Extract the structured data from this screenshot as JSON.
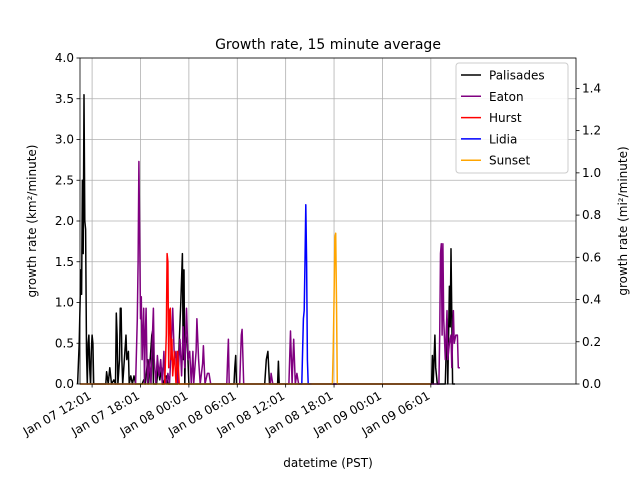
{
  "chart_data": {
    "type": "line",
    "title": "Growth rate, 15 minute average",
    "xlabel": "datetime (PST)",
    "ylabel_left": "growth rate (km²/minute)",
    "ylabel_right": "growth rate (mi²/minute)",
    "ylim_left": [
      0,
      4.0
    ],
    "ylim_right": [
      0,
      1.544
    ],
    "yticks_left": [
      "0.0",
      "0.5",
      "1.0",
      "1.5",
      "2.0",
      "2.5",
      "3.0",
      "3.5",
      "4.0"
    ],
    "yticks_right": [
      "0.0",
      "0.2",
      "0.4",
      "0.6",
      "0.8",
      "1.0",
      "1.2",
      "1.4"
    ],
    "xlim_hours": [
      -1.5,
      60.0
    ],
    "xticks": [
      {
        "h": 0,
        "label": "Jan 07 12:01"
      },
      {
        "h": 6,
        "label": "Jan 07 18:01"
      },
      {
        "h": 12,
        "label": "Jan 08 00:01"
      },
      {
        "h": 18,
        "label": "Jan 08 06:01"
      },
      {
        "h": 24,
        "label": "Jan 08 12:01"
      },
      {
        "h": 30,
        "label": "Jan 08 18:01"
      },
      {
        "h": 36,
        "label": "Jan 09 00:01"
      },
      {
        "h": 42,
        "label": "Jan 09 06:01"
      }
    ],
    "grid": true,
    "legend_position": "top-right",
    "series": [
      {
        "name": "Palisades",
        "color": "#000000",
        "points": [
          [
            -1.8,
            0
          ],
          [
            -1.6,
            0.5
          ],
          [
            -1.4,
            1.4
          ],
          [
            -1.3,
            1.1
          ],
          [
            -1.2,
            2.5
          ],
          [
            -1.1,
            1.6
          ],
          [
            -1.0,
            3.55
          ],
          [
            -0.9,
            2.0
          ],
          [
            -0.8,
            1.9
          ],
          [
            -0.7,
            0.4
          ],
          [
            -0.6,
            0.0
          ],
          [
            -0.5,
            0.5
          ],
          [
            -0.4,
            0.6
          ],
          [
            -0.3,
            0.2
          ],
          [
            -0.2,
            0.0
          ],
          [
            -0.1,
            0.4
          ],
          [
            0.0,
            0.6
          ],
          [
            0.1,
            0.5
          ],
          [
            0.2,
            0.0
          ],
          [
            1.7,
            0.0
          ],
          [
            1.8,
            0.15
          ],
          [
            2.0,
            0.0
          ],
          [
            2.2,
            0.2
          ],
          [
            2.4,
            0.0
          ],
          [
            2.7,
            0.05
          ],
          [
            2.9,
            0.0
          ],
          [
            3.0,
            0.87
          ],
          [
            3.1,
            0.6
          ],
          [
            3.2,
            0.0
          ],
          [
            3.4,
            0.3
          ],
          [
            3.5,
            0.93
          ],
          [
            3.6,
            0.93
          ],
          [
            3.7,
            0.3
          ],
          [
            3.8,
            0.0
          ],
          [
            4.2,
            0.6
          ],
          [
            4.3,
            0.3
          ],
          [
            4.5,
            0.4
          ],
          [
            4.6,
            0.0
          ],
          [
            4.8,
            0.1
          ],
          [
            5.0,
            0.0
          ],
          [
            5.2,
            0.1
          ],
          [
            5.4,
            0.0
          ],
          [
            6.2,
            0.0
          ],
          [
            6.4,
            0.05
          ],
          [
            6.6,
            0.0
          ],
          [
            6.9,
            0.3
          ],
          [
            7.0,
            0.0
          ],
          [
            7.4,
            0.6
          ],
          [
            7.5,
            0.65
          ],
          [
            7.6,
            0.0
          ],
          [
            8.0,
            0.0
          ],
          [
            8.2,
            0.2
          ],
          [
            8.4,
            0.05
          ],
          [
            8.6,
            0.2
          ],
          [
            8.8,
            0.0
          ],
          [
            9.2,
            0.1
          ],
          [
            9.4,
            0.0
          ],
          [
            10.6,
            0.0
          ],
          [
            10.8,
            0.5
          ],
          [
            11.0,
            1.0
          ],
          [
            11.2,
            1.6
          ],
          [
            11.3,
            0.3
          ],
          [
            11.4,
            1.4
          ],
          [
            11.5,
            0.0
          ],
          [
            11.6,
            0.6
          ],
          [
            11.8,
            0.5
          ],
          [
            12.0,
            0.0
          ],
          [
            12.4,
            0.0
          ],
          [
            17.6,
            0.0
          ],
          [
            17.7,
            0.2
          ],
          [
            17.8,
            0.35
          ],
          [
            17.9,
            0.0
          ],
          [
            21.4,
            0.0
          ],
          [
            21.6,
            0.3
          ],
          [
            21.8,
            0.4
          ],
          [
            22.0,
            0.0
          ],
          [
            23.0,
            0.0
          ],
          [
            23.1,
            0.28
          ],
          [
            23.2,
            0.0
          ],
          [
            42.1,
            0.0
          ],
          [
            42.2,
            0.35
          ],
          [
            42.3,
            0.0
          ],
          [
            42.5,
            0.6
          ],
          [
            42.6,
            0.2
          ],
          [
            42.8,
            0.0
          ],
          [
            43.8,
            0.0
          ],
          [
            44.0,
            0.8
          ],
          [
            44.1,
            0.0
          ],
          [
            44.3,
            1.2
          ],
          [
            44.4,
            0.7
          ],
          [
            44.5,
            1.66
          ],
          [
            44.7,
            0.0
          ],
          [
            45.0,
            0.0
          ]
        ]
      },
      {
        "name": "Eaton",
        "color": "#800080",
        "points": [
          [
            -1.5,
            0.0
          ],
          [
            5.4,
            0.0
          ],
          [
            5.6,
            0.8
          ],
          [
            5.7,
            1.5
          ],
          [
            5.8,
            2.73
          ],
          [
            5.9,
            1.8
          ],
          [
            6.0,
            0.8
          ],
          [
            6.1,
            1.07
          ],
          [
            6.2,
            0.3
          ],
          [
            6.4,
            0.93
          ],
          [
            6.5,
            0.0
          ],
          [
            6.6,
            0.6
          ],
          [
            6.7,
            0.93
          ],
          [
            6.8,
            0.3
          ],
          [
            6.9,
            0.0
          ],
          [
            7.1,
            0.3
          ],
          [
            7.3,
            0.0
          ],
          [
            7.5,
            0.65
          ],
          [
            7.6,
            0.93
          ],
          [
            7.7,
            0.3
          ],
          [
            7.9,
            0.0
          ],
          [
            8.1,
            0.35
          ],
          [
            8.3,
            0.1
          ],
          [
            8.5,
            0.3
          ],
          [
            8.7,
            0.0
          ],
          [
            8.9,
            0.4
          ],
          [
            9.0,
            0.1
          ],
          [
            9.2,
            0.0
          ],
          [
            9.4,
            0.13
          ],
          [
            9.6,
            0.0
          ],
          [
            9.8,
            0.4
          ],
          [
            10.0,
            0.93
          ],
          [
            10.2,
            0.3
          ],
          [
            10.4,
            0.4
          ],
          [
            10.6,
            0.0
          ],
          [
            10.9,
            0.55
          ],
          [
            11.1,
            0.1
          ],
          [
            11.3,
            0.7
          ],
          [
            11.5,
            0.2
          ],
          [
            11.7,
            0.93
          ],
          [
            11.9,
            0.3
          ],
          [
            12.1,
            0.4
          ],
          [
            12.3,
            0.0
          ],
          [
            12.5,
            0.4
          ],
          [
            12.6,
            0.0
          ],
          [
            12.9,
            0.4
          ],
          [
            13.0,
            0.8
          ],
          [
            13.2,
            0.3
          ],
          [
            13.4,
            0.0
          ],
          [
            13.7,
            0.25
          ],
          [
            13.8,
            0.47
          ],
          [
            14.0,
            0.0
          ],
          [
            14.3,
            0.13
          ],
          [
            14.5,
            0.13
          ],
          [
            14.7,
            0.0
          ],
          [
            16.7,
            0.0
          ],
          [
            16.8,
            0.3
          ],
          [
            16.9,
            0.55
          ],
          [
            17.0,
            0.0
          ],
          [
            18.3,
            0.0
          ],
          [
            18.5,
            0.6
          ],
          [
            18.6,
            0.67
          ],
          [
            18.8,
            0.0
          ],
          [
            22.1,
            0.0
          ],
          [
            22.2,
            0.13
          ],
          [
            22.4,
            0.0
          ],
          [
            24.4,
            0.0
          ],
          [
            24.6,
            0.65
          ],
          [
            24.8,
            0.0
          ],
          [
            24.9,
            0.3
          ],
          [
            25.0,
            0.55
          ],
          [
            25.2,
            0.0
          ],
          [
            25.4,
            0.13
          ],
          [
            25.6,
            0.0
          ],
          [
            40.0,
            0.0
          ],
          [
            43.0,
            0.0
          ],
          [
            43.1,
            0.6
          ],
          [
            43.2,
            1.6
          ],
          [
            43.3,
            1.72
          ],
          [
            43.4,
            0.6
          ],
          [
            43.5,
            1.72
          ],
          [
            43.6,
            0.8
          ],
          [
            43.8,
            0.3
          ],
          [
            44.0,
            0.9
          ],
          [
            44.1,
            0.3
          ],
          [
            44.3,
            0.5
          ],
          [
            44.5,
            0.6
          ],
          [
            44.6,
            0.2
          ],
          [
            44.8,
            0.9
          ],
          [
            44.9,
            0.5
          ],
          [
            45.1,
            0.6
          ],
          [
            45.3,
            0.6
          ],
          [
            45.4,
            0.2
          ],
          [
            45.6,
            0.2
          ]
        ]
      },
      {
        "name": "Hurst",
        "color": "#ff0000",
        "points": [
          [
            8.6,
            0.0
          ],
          [
            9.0,
            0.0
          ],
          [
            9.2,
            0.6
          ],
          [
            9.3,
            1.6
          ],
          [
            9.4,
            1.5
          ],
          [
            9.5,
            0.2
          ],
          [
            9.6,
            0.9
          ],
          [
            9.7,
            0.93
          ],
          [
            9.8,
            0.3
          ],
          [
            9.9,
            0.55
          ],
          [
            10.0,
            0.1
          ],
          [
            10.2,
            0.4
          ],
          [
            10.4,
            0.0
          ],
          [
            10.6,
            0.4
          ],
          [
            10.8,
            0.0
          ],
          [
            12.0,
            0.0
          ]
        ]
      },
      {
        "name": "Lidia",
        "color": "#0000ff",
        "points": [
          [
            25.6,
            0.0
          ],
          [
            26.0,
            0.0
          ],
          [
            26.2,
            0.8
          ],
          [
            26.3,
            0.9
          ],
          [
            26.4,
            1.5
          ],
          [
            26.5,
            2.2
          ],
          [
            26.6,
            1.5
          ],
          [
            26.7,
            0.3
          ],
          [
            26.8,
            0.0
          ],
          [
            27.2,
            0.0
          ]
        ]
      },
      {
        "name": "Sunset",
        "color": "#ffa500",
        "points": [
          [
            -1.5,
            0.0
          ],
          [
            29.8,
            0.0
          ],
          [
            29.9,
            0.4
          ],
          [
            30.0,
            1.0
          ],
          [
            30.1,
            1.8
          ],
          [
            30.2,
            1.85
          ],
          [
            30.3,
            1.0
          ],
          [
            30.4,
            0.0
          ],
          [
            42.0,
            0.0
          ]
        ]
      }
    ]
  }
}
